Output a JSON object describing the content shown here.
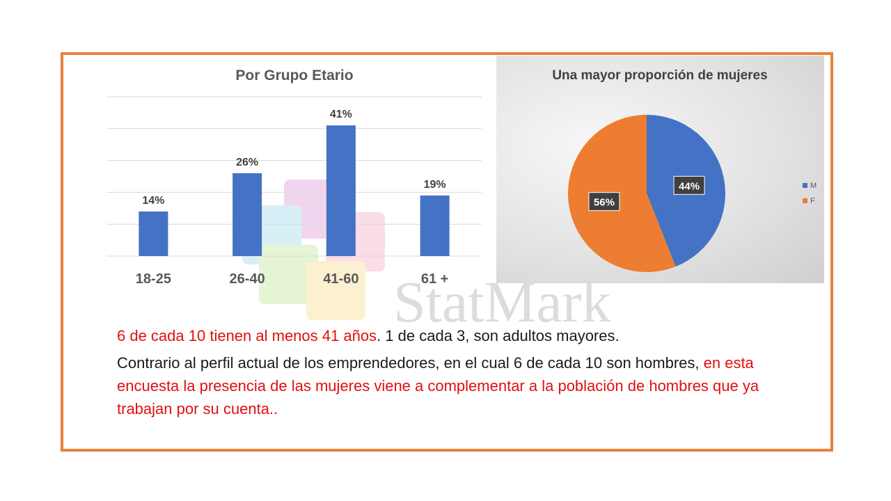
{
  "colors": {
    "frame": "#e8823a",
    "bar": "#4472c4",
    "male": "#4472c4",
    "female": "#ed7d31",
    "highlight": "#e01010"
  },
  "watermark": {
    "text": "StatMark"
  },
  "chart_data": [
    {
      "type": "bar",
      "title": "Por Grupo Etario",
      "categories": [
        "18-25",
        "26-40",
        "41-60",
        "61 +"
      ],
      "values": [
        14,
        26,
        41,
        19
      ],
      "data_labels": [
        "14%",
        "26%",
        "41%",
        "19%"
      ],
      "ylim": [
        0,
        50
      ],
      "grid": true,
      "xlabel": "",
      "ylabel": ""
    },
    {
      "type": "pie",
      "title": "Una mayor proporción de mujeres",
      "labels": [
        "M",
        "F"
      ],
      "values": [
        44,
        56
      ],
      "data_labels": [
        "44%",
        "56%"
      ],
      "legend": "right"
    }
  ],
  "text": {
    "line1_red": "6 de cada 10 tienen al menos 41 años",
    "line1_black": ". 1 de cada 3, son adultos mayores.",
    "line2_black": "Contrario al perfil actual de los emprendedores, en el cual 6 de cada 10 son hombres,",
    "line2_red": "en esta encuesta la presencia de las mujeres viene a complementar a la población de hombres que ya trabajan por su cuenta.."
  }
}
